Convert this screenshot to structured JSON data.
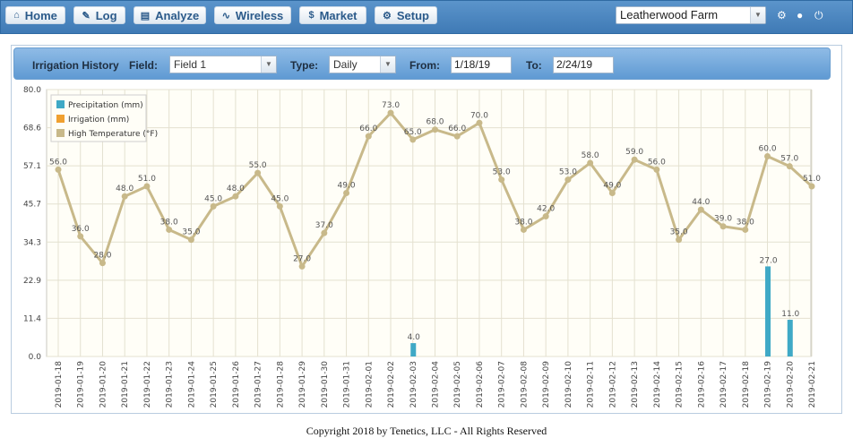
{
  "nav": {
    "home": "Home",
    "log": "Log",
    "analyze": "Analyze",
    "wireless": "Wireless",
    "market": "Market",
    "setup": "Setup",
    "farm_selected": "Leatherwood Farm",
    "icons": [
      "home-icon",
      "edit-icon",
      "bar-chart-icon",
      "rss-icon",
      "dollar-icon",
      "gear-icon"
    ]
  },
  "filters": {
    "title": "Irrigation History",
    "field_label": "Field:",
    "field_value": "Field 1",
    "type_label": "Type:",
    "type_value": "Daily",
    "from_label": "From:",
    "from_value": "1/18/19",
    "to_label": "To:",
    "to_value": "2/24/19"
  },
  "chart_data": {
    "type": "bar",
    "ylim": [
      0,
      80
    ],
    "ytick_labels": [
      "80.0",
      "68.6",
      "57.1",
      "45.7",
      "34.3",
      "22.9",
      "11.4",
      "0.0"
    ],
    "categories": [
      "2019-01-18",
      "2019-01-19",
      "2019-01-20",
      "2019-01-21",
      "2019-01-22",
      "2019-01-23",
      "2019-01-24",
      "2019-01-25",
      "2019-01-26",
      "2019-01-27",
      "2019-01-28",
      "2019-01-29",
      "2019-01-30",
      "2019-01-31",
      "2019-02-01",
      "2019-02-02",
      "2019-02-03",
      "2019-02-04",
      "2019-02-05",
      "2019-02-06",
      "2019-02-07",
      "2019-02-08",
      "2019-02-09",
      "2019-02-10",
      "2019-02-11",
      "2019-02-12",
      "2019-02-13",
      "2019-02-14",
      "2019-02-15",
      "2019-02-16",
      "2019-02-17",
      "2019-02-18",
      "2019-02-19",
      "2019-02-20",
      "2019-02-21"
    ],
    "series": [
      {
        "name": "Precipitation (mm)",
        "kind": "bar",
        "color": "#3fa9c6",
        "values": [
          0,
          0,
          0,
          0,
          0,
          0,
          0,
          0,
          0,
          0,
          0,
          0,
          0,
          0,
          0,
          0,
          4,
          0,
          0,
          0,
          0,
          0,
          0,
          0,
          0,
          0,
          0,
          0,
          0,
          0,
          0,
          0,
          27,
          11,
          0
        ]
      },
      {
        "name": "Irrigation (mm)",
        "kind": "bar",
        "color": "#f0a030",
        "values": [
          0,
          0,
          0,
          0,
          0,
          0,
          0,
          0,
          0,
          0,
          0,
          0,
          0,
          0,
          0,
          0,
          0,
          0,
          0,
          0,
          0,
          0,
          0,
          0,
          0,
          0,
          0,
          0,
          0,
          0,
          0,
          0,
          0,
          0,
          0
        ]
      },
      {
        "name": "High Temperature (°F)",
        "kind": "line",
        "color": "#c8b98a",
        "values": [
          56,
          36,
          28,
          48,
          51,
          38,
          35,
          45,
          48,
          55,
          45,
          27,
          37,
          49,
          66,
          73,
          65,
          68,
          66,
          70,
          53,
          38,
          42,
          53,
          58,
          49,
          59,
          56,
          35,
          44,
          39,
          38,
          60,
          57,
          51
        ]
      }
    ],
    "grid": true,
    "legend_position": "top-left"
  },
  "footer": {
    "copyright": "Copyright 2018 by Tenetics, LLC - All Rights Reserved"
  }
}
